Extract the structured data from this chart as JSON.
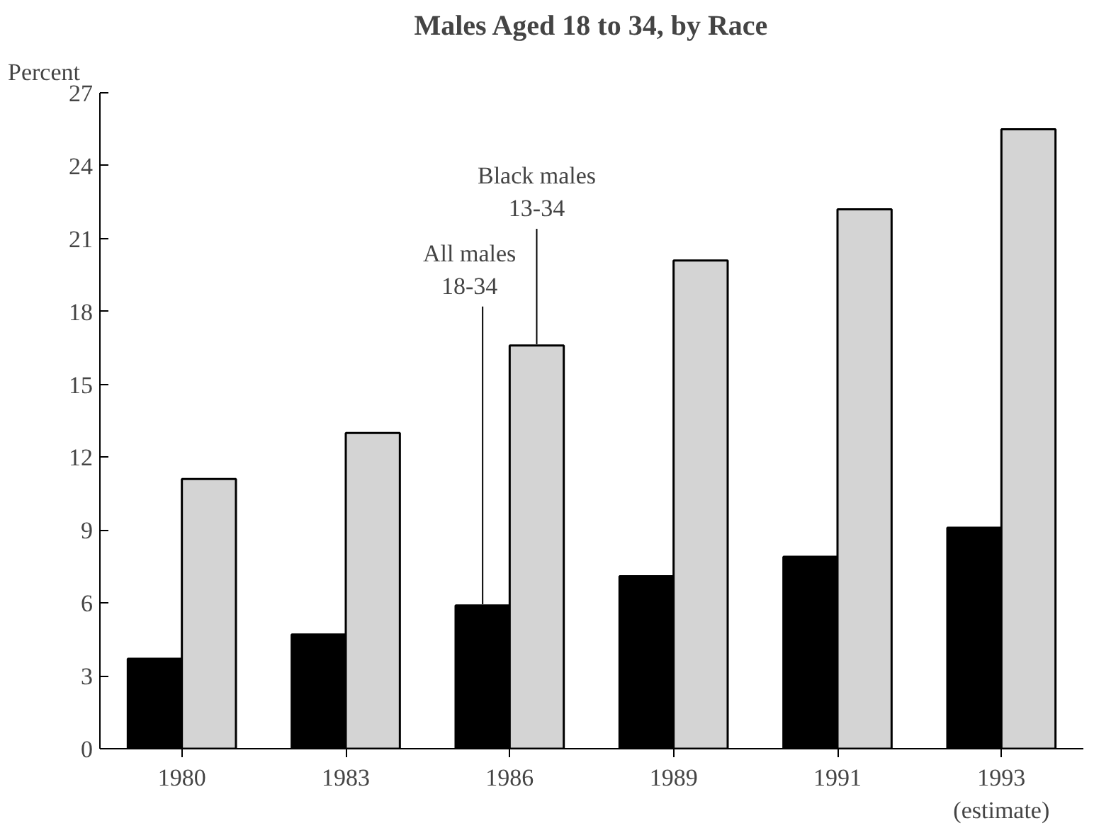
{
  "chart_data": {
    "type": "bar",
    "title": "Males Aged 18 to 34, by Race",
    "ylabel": "Percent",
    "categories": [
      "1980",
      "1983",
      "1986",
      "1989",
      "1991",
      "1993\n(estimate)"
    ],
    "series": [
      {
        "name": "All males\n18-34",
        "color": "#000000",
        "values": [
          3.7,
          4.7,
          5.9,
          7.1,
          7.9,
          9.1
        ]
      },
      {
        "name": "Black males\n13-34",
        "color": "#d4d4d4",
        "values": [
          11.1,
          13.0,
          16.6,
          20.1,
          22.2,
          25.5
        ]
      }
    ],
    "ylim": [
      0,
      27
    ],
    "yticks": [
      0,
      3,
      6,
      9,
      12,
      15,
      18,
      21,
      24,
      27
    ],
    "grid": false,
    "legend": false
  }
}
